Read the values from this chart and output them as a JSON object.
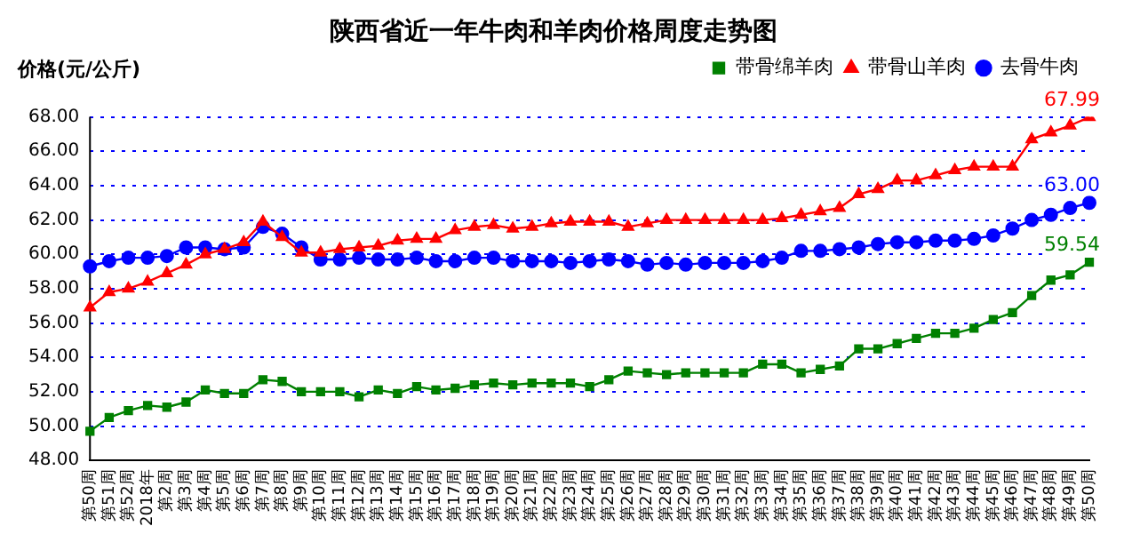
{
  "chart_data": {
    "type": "line",
    "title": "陕西省近一年牛肉和羊肉价格周度走势图",
    "ylabel": "价格(元/公斤)",
    "categories": [
      "第50周",
      "第51周",
      "第52周",
      "2018年",
      "第2周",
      "第3周",
      "第4周",
      "第5周",
      "第6周",
      "第7周",
      "第8周",
      "第9周",
      "第10周",
      "第11周",
      "第12周",
      "第13周",
      "第14周",
      "第15周",
      "第16周",
      "第17周",
      "第18周",
      "第19周",
      "第20周",
      "第21周",
      "第22周",
      "第23周",
      "第24周",
      "第25周",
      "第26周",
      "第27周",
      "第28周",
      "第29周",
      "第30周",
      "第31周",
      "第32周",
      "第33周",
      "第34周",
      "第35周",
      "第36周",
      "第37周",
      "第38周",
      "第39周",
      "第40周",
      "第41周",
      "第42周",
      "第43周",
      "第44周",
      "第45周",
      "第46周",
      "第47周",
      "第48周",
      "第49周",
      "第50周"
    ],
    "series": [
      {
        "name": "去骨牛肉",
        "color": "#0000ff",
        "marker": "circle",
        "values": [
          59.3,
          59.6,
          59.8,
          59.8,
          59.9,
          60.4,
          60.4,
          60.3,
          60.4,
          61.6,
          61.2,
          60.4,
          59.7,
          59.7,
          59.8,
          59.7,
          59.7,
          59.8,
          59.6,
          59.6,
          59.8,
          59.8,
          59.6,
          59.6,
          59.6,
          59.5,
          59.6,
          59.7,
          59.6,
          59.4,
          59.5,
          59.4,
          59.5,
          59.5,
          59.5,
          59.6,
          59.8,
          60.2,
          60.2,
          60.3,
          60.4,
          60.6,
          60.7,
          60.7,
          60.8,
          60.8,
          60.9,
          61.1,
          61.5,
          62.0,
          62.3,
          62.7,
          63.0
        ],
        "value_labels": [
          null,
          null,
          null,
          null,
          null,
          null,
          null,
          null,
          null,
          null,
          null,
          null,
          null,
          null,
          null,
          null,
          null,
          null,
          null,
          null,
          null,
          null,
          null,
          null,
          null,
          null,
          null,
          null,
          null,
          null,
          null,
          null,
          null,
          null,
          null,
          null,
          null,
          null,
          null,
          null,
          null,
          null,
          null,
          null,
          null,
          null,
          null,
          null,
          null,
          null,
          null,
          null,
          "63.00"
        ]
      },
      {
        "name": "带骨山羊肉",
        "color": "#ff0000",
        "marker": "triangle",
        "values": [
          56.9,
          57.8,
          58.0,
          58.4,
          58.9,
          59.4,
          60.0,
          60.3,
          60.7,
          61.9,
          61.0,
          60.1,
          60.1,
          60.3,
          60.4,
          60.5,
          60.8,
          60.9,
          60.9,
          61.4,
          61.6,
          61.7,
          61.5,
          61.6,
          61.8,
          61.9,
          61.9,
          61.9,
          61.6,
          61.8,
          62.0,
          62.0,
          62.0,
          62.0,
          62.0,
          62.0,
          62.1,
          62.3,
          62.5,
          62.7,
          63.5,
          63.8,
          64.3,
          64.3,
          64.6,
          64.9,
          65.1,
          65.1,
          65.1,
          66.7,
          67.1,
          67.5,
          67.99
        ],
        "value_labels": [
          null,
          null,
          null,
          null,
          null,
          null,
          null,
          null,
          null,
          null,
          null,
          null,
          null,
          null,
          null,
          null,
          null,
          null,
          null,
          null,
          null,
          null,
          null,
          null,
          null,
          null,
          null,
          null,
          null,
          null,
          null,
          null,
          null,
          null,
          null,
          null,
          null,
          null,
          null,
          null,
          null,
          null,
          null,
          null,
          null,
          null,
          null,
          null,
          null,
          null,
          null,
          null,
          "67.99"
        ]
      },
      {
        "name": "带骨绵羊肉",
        "color": "#008000",
        "marker": "square",
        "values": [
          49.7,
          50.5,
          50.9,
          51.2,
          51.1,
          51.4,
          52.1,
          51.9,
          51.9,
          52.7,
          52.6,
          52.0,
          52.0,
          52.0,
          51.7,
          52.1,
          51.9,
          52.3,
          52.1,
          52.2,
          52.4,
          52.5,
          52.4,
          52.5,
          52.5,
          52.5,
          52.3,
          52.7,
          53.2,
          53.1,
          53.0,
          53.1,
          53.1,
          53.1,
          53.1,
          53.6,
          53.6,
          53.1,
          53.3,
          53.5,
          54.5,
          54.5,
          54.8,
          55.1,
          55.4,
          55.4,
          55.7,
          56.2,
          56.6,
          57.6,
          58.5,
          58.8,
          59.54
        ],
        "value_labels": [
          null,
          null,
          null,
          null,
          null,
          null,
          null,
          null,
          null,
          null,
          null,
          null,
          null,
          null,
          null,
          null,
          null,
          null,
          null,
          null,
          null,
          null,
          null,
          null,
          null,
          null,
          null,
          null,
          null,
          null,
          null,
          null,
          null,
          null,
          null,
          null,
          null,
          null,
          null,
          null,
          null,
          null,
          null,
          null,
          null,
          null,
          null,
          null,
          null,
          null,
          null,
          null,
          "59.54"
        ]
      }
    ],
    "ylim": [
      48,
      68
    ],
    "yticks": [
      {
        "value": 48,
        "label": "48.00"
      },
      {
        "value": 50,
        "label": "50.00"
      },
      {
        "value": 52,
        "label": "52.00"
      },
      {
        "value": 54,
        "label": "54.00"
      },
      {
        "value": 56,
        "label": "56.00"
      },
      {
        "value": 58,
        "label": "58.00"
      },
      {
        "value": 60,
        "label": "60.00"
      },
      {
        "value": 62,
        "label": "62.00"
      },
      {
        "value": 64,
        "label": "64.00"
      },
      {
        "value": 66,
        "label": "66.00"
      },
      {
        "value": 68,
        "label": "68.00"
      }
    ],
    "grid": "y",
    "legend": "top right",
    "line_style": "solid"
  }
}
